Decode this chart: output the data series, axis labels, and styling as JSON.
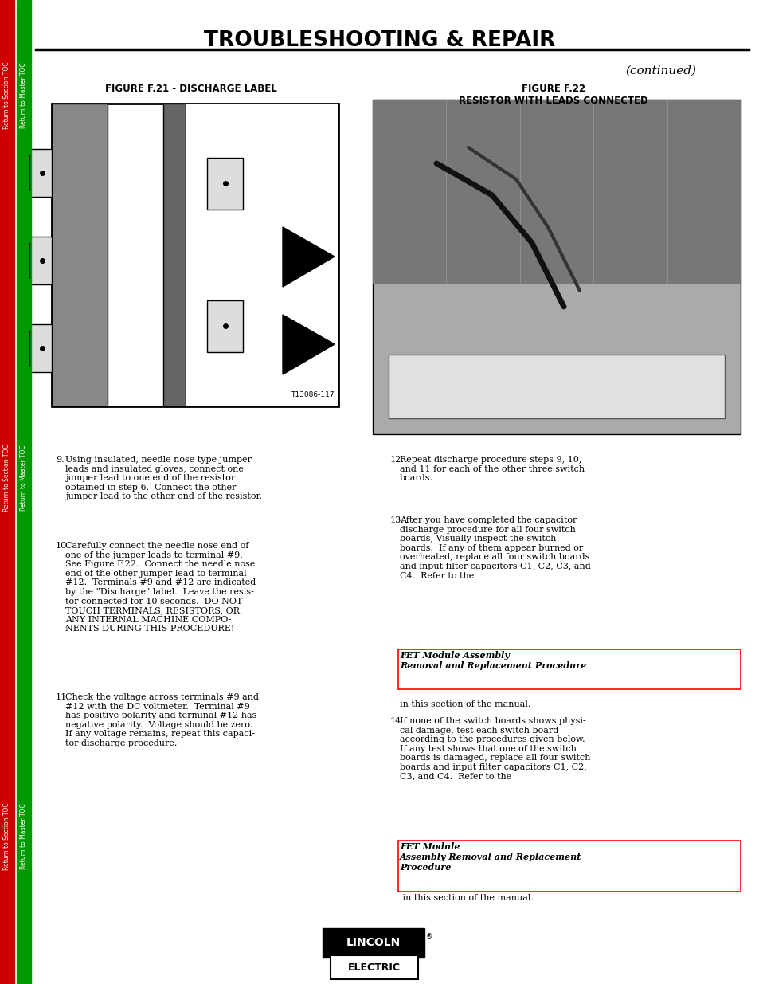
{
  "title": "TROUBLESHOOTING & REPAIR",
  "continued": "(continued)",
  "fig21_title": "FIGURE F.21 - DISCHARGE LABEL",
  "fig22_title": "FIGURE F.22\nRESISTOR WITH LEADS CONNECTED",
  "bg_color": "#ffffff",
  "sidebar_left_color": "#cc0000",
  "sidebar_right_color": "#009900",
  "item9": "Using insulated, needle nose type jumper\nleads and insulated gloves, connect one\njumper lead to one end of the resistor\nobtained in step 6.  Connect the other\njumper lead to the other end of the resistor.",
  "item10": "Carefully connect the needle nose end of\none of the jumper leads to terminal #9.\nSee Figure F.22.  Connect the needle nose\nend of the other jumper lead to terminal\n#12.  Terminals #9 and #12 are indicated\nby the \"Discharge\" label.  Leave the resis-\ntor connected for 10 seconds.  DO NOT\nTOUCH TERMINALS, RESISTORS, OR\nANY INTERNAL MACHINE COMPO-\nNENTS DURING THIS PROCEDURE!",
  "item11": "Check the voltage across terminals #9 and\n#12 with the DC voltmeter.  Terminal #9\nhas positive polarity and terminal #12 has\nnegative polarity.  Voltage should be zero.\nIf any voltage remains, repeat this capaci-\ntor discharge procedure.",
  "item12": "Repeat discharge procedure steps 9, 10,\nand 11 for each of the other three switch\nboards.",
  "item13_pre": "After you have completed the capacitor\ndischarge procedure for all four switch\nboards, Visually inspect the switch\nboards.  If any of them appear burned or\noverheated, replace all four switch boards\nand input filter capacitors C1, C2, C3, and\nC4.  Refer to the ",
  "item13_bold": "FET Module Assembly\nRemoval and Replacement Procedure",
  "item13_post": "\nin this section of the manual.",
  "item14_pre": "If none of the switch boards shows physi-\ncal damage, test each switch board\naccording to the procedures given below.\nIf any test shows that one of the switch\nboards is damaged, replace all four switch\nboards and input filter capacitors C1, C2,\nC3, and C4.  Refer to the ",
  "item14_bold": "FET Module\nAssembly Removal and Replacement\nProcedure",
  "item14_post": " in this section of the manual.",
  "sidebar_labels": [
    "Return to Section TOC",
    "Return to Master TOC"
  ]
}
